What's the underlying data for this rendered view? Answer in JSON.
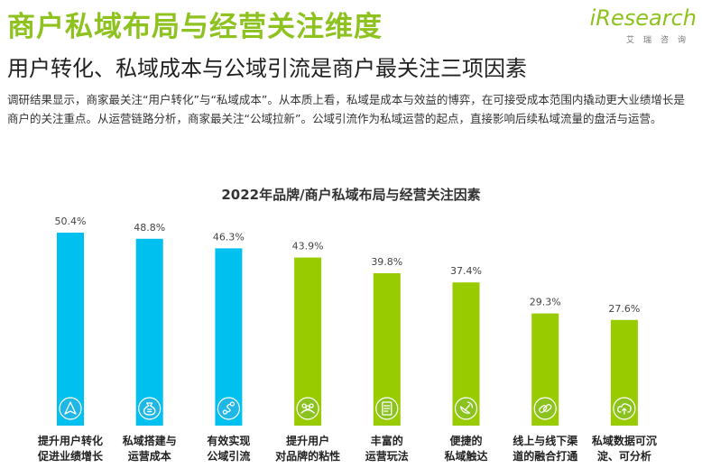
{
  "header": {
    "title": "商户私域布局与经营关注维度",
    "subtitle": "用户转化、私域成本与公域引流是商户最关注三项因素",
    "description": "调研结果显示，商家最关注“用户转化”与“私域成本”。从本质上看，私域是成本与效益的博弈，在可接受成本范围内撬动更大业绩增长是商户的关注重点。从运营链路分析，商家最关注“公域拉新”。公域引流作为私域运营的起点，直接影响后续私域流量的盘活与运营。"
  },
  "logo": {
    "main": "iResearch",
    "sub": "艾瑞咨询"
  },
  "chart_data": {
    "type": "bar",
    "title": "2022年品牌/商户私域布局与经营关注因素",
    "categories": [
      [
        "提升用户转化",
        "促进业绩增长"
      ],
      [
        "私域搭建与",
        "运营成本"
      ],
      [
        "有效实现",
        "公域引流"
      ],
      [
        "提升用户",
        "对品牌的粘性"
      ],
      [
        "丰富的",
        "运营玩法"
      ],
      [
        "便捷的",
        "私域触达"
      ],
      [
        "线上与线下渠",
        "道的融合打通"
      ],
      [
        "私域数据可沉",
        "淀、可分析"
      ]
    ],
    "values": [
      50.4,
      48.8,
      46.3,
      43.9,
      39.8,
      37.4,
      29.3,
      27.6
    ],
    "value_labels": [
      "50.4%",
      "48.8%",
      "46.3%",
      "43.9%",
      "39.8%",
      "37.4%",
      "29.3%",
      "27.6%"
    ],
    "icons": [
      "navigation-arrow-icon",
      "money-bag-icon",
      "path-route-icon",
      "people-group-icon",
      "checklist-icon",
      "satellite-dish-icon",
      "link-chain-icon",
      "cloud-upload-icon"
    ],
    "highlight_count": 3,
    "colors": {
      "highlight": "#00c0f0",
      "normal": "#99cc00",
      "icon_highlight": "#1fb7e6",
      "icon_normal": "#8cc21f"
    },
    "ylim": [
      0,
      50.4
    ],
    "grid": false,
    "legend": "none"
  }
}
